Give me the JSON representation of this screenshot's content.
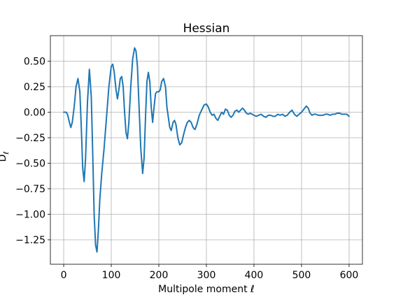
{
  "chart_data": {
    "type": "line",
    "title": "Hessian",
    "xlabel": "Multipole moment ℓ",
    "ylabel": "D_ℓ",
    "xlim": [
      -28,
      628
    ],
    "ylim": [
      -1.49,
      0.75
    ],
    "grid": true,
    "xticks": [
      0,
      100,
      200,
      300,
      400,
      500,
      600
    ],
    "yticks": [
      0.5,
      0.25,
      0.0,
      -0.25,
      -0.5,
      -0.75,
      -1.0,
      -1.25
    ],
    "ytick_labels": [
      "0.50",
      "0.25",
      "0.00",
      "−0.25",
      "−0.50",
      "−0.75",
      "−1.00",
      "−1.25"
    ],
    "line_color": "#1f77b4",
    "series": [
      {
        "points": [
          [
            0,
            0.0
          ],
          [
            5,
            0.0
          ],
          [
            8,
            -0.02
          ],
          [
            12,
            -0.1
          ],
          [
            15,
            -0.15
          ],
          [
            18,
            -0.1
          ],
          [
            22,
            0.05
          ],
          [
            26,
            0.25
          ],
          [
            30,
            0.33
          ],
          [
            34,
            0.2
          ],
          [
            37,
            -0.15
          ],
          [
            40,
            -0.55
          ],
          [
            43,
            -0.68
          ],
          [
            46,
            -0.45
          ],
          [
            50,
            0.1
          ],
          [
            54,
            0.42
          ],
          [
            58,
            0.15
          ],
          [
            61,
            -0.4
          ],
          [
            64,
            -1.0
          ],
          [
            67,
            -1.3
          ],
          [
            70,
            -1.37
          ],
          [
            73,
            -1.15
          ],
          [
            76,
            -0.85
          ],
          [
            80,
            -0.6
          ],
          [
            85,
            -0.35
          ],
          [
            90,
            -0.05
          ],
          [
            95,
            0.25
          ],
          [
            100,
            0.45
          ],
          [
            103,
            0.47
          ],
          [
            106,
            0.4
          ],
          [
            110,
            0.22
          ],
          [
            113,
            0.13
          ],
          [
            116,
            0.22
          ],
          [
            119,
            0.33
          ],
          [
            122,
            0.35
          ],
          [
            125,
            0.25
          ],
          [
            128,
            0.0
          ],
          [
            131,
            -0.2
          ],
          [
            134,
            -0.26
          ],
          [
            137,
            -0.1
          ],
          [
            141,
            0.25
          ],
          [
            145,
            0.52
          ],
          [
            149,
            0.63
          ],
          [
            152,
            0.6
          ],
          [
            155,
            0.45
          ],
          [
            158,
            0.1
          ],
          [
            162,
            -0.35
          ],
          [
            166,
            -0.6
          ],
          [
            169,
            -0.45
          ],
          [
            172,
            -0.05
          ],
          [
            175,
            0.3
          ],
          [
            178,
            0.39
          ],
          [
            181,
            0.3
          ],
          [
            184,
            0.05
          ],
          [
            187,
            -0.1
          ],
          [
            190,
            0.05
          ],
          [
            193,
            0.18
          ],
          [
            196,
            0.2
          ],
          [
            200,
            0.2
          ],
          [
            203,
            0.22
          ],
          [
            206,
            0.3
          ],
          [
            210,
            0.33
          ],
          [
            214,
            0.25
          ],
          [
            217,
            0.05
          ],
          [
            220,
            -0.05
          ],
          [
            223,
            -0.15
          ],
          [
            226,
            -0.18
          ],
          [
            230,
            -0.1
          ],
          [
            233,
            -0.08
          ],
          [
            236,
            -0.12
          ],
          [
            240,
            -0.25
          ],
          [
            244,
            -0.32
          ],
          [
            248,
            -0.3
          ],
          [
            252,
            -0.22
          ],
          [
            256,
            -0.15
          ],
          [
            260,
            -0.1
          ],
          [
            264,
            -0.08
          ],
          [
            268,
            -0.1
          ],
          [
            272,
            -0.15
          ],
          [
            276,
            -0.17
          ],
          [
            280,
            -0.12
          ],
          [
            285,
            -0.03
          ],
          [
            290,
            0.02
          ],
          [
            295,
            0.07
          ],
          [
            300,
            0.08
          ],
          [
            304,
            0.05
          ],
          [
            308,
            0.0
          ],
          [
            312,
            -0.03
          ],
          [
            316,
            -0.02
          ],
          [
            320,
            -0.06
          ],
          [
            324,
            -0.08
          ],
          [
            328,
            -0.04
          ],
          [
            332,
            0.0
          ],
          [
            336,
            -0.02
          ],
          [
            340,
            0.03
          ],
          [
            344,
            0.02
          ],
          [
            348,
            -0.03
          ],
          [
            352,
            -0.05
          ],
          [
            356,
            -0.03
          ],
          [
            360,
            0.01
          ],
          [
            364,
            0.02
          ],
          [
            368,
            0.0
          ],
          [
            372,
            0.02
          ],
          [
            376,
            0.04
          ],
          [
            380,
            0.02
          ],
          [
            384,
            -0.01
          ],
          [
            388,
            -0.02
          ],
          [
            392,
            -0.01
          ],
          [
            396,
            -0.02
          ],
          [
            400,
            -0.03
          ],
          [
            405,
            -0.04
          ],
          [
            410,
            -0.03
          ],
          [
            415,
            -0.02
          ],
          [
            420,
            -0.04
          ],
          [
            425,
            -0.05
          ],
          [
            430,
            -0.03
          ],
          [
            435,
            -0.03
          ],
          [
            440,
            -0.04
          ],
          [
            445,
            -0.04
          ],
          [
            450,
            -0.02
          ],
          [
            455,
            -0.03
          ],
          [
            460,
            -0.02
          ],
          [
            465,
            -0.04
          ],
          [
            470,
            -0.03
          ],
          [
            475,
            0.0
          ],
          [
            480,
            0.02
          ],
          [
            485,
            -0.02
          ],
          [
            490,
            -0.04
          ],
          [
            495,
            -0.02
          ],
          [
            500,
            0.0
          ],
          [
            505,
            0.03
          ],
          [
            510,
            0.06
          ],
          [
            514,
            0.04
          ],
          [
            518,
            -0.01
          ],
          [
            522,
            -0.03
          ],
          [
            526,
            -0.02
          ],
          [
            530,
            -0.02
          ],
          [
            535,
            -0.03
          ],
          [
            540,
            -0.03
          ],
          [
            545,
            -0.03
          ],
          [
            550,
            -0.02
          ],
          [
            555,
            -0.02
          ],
          [
            560,
            -0.03
          ],
          [
            565,
            -0.02
          ],
          [
            570,
            -0.02
          ],
          [
            575,
            -0.01
          ],
          [
            580,
            -0.01
          ],
          [
            585,
            -0.02
          ],
          [
            590,
            -0.02
          ],
          [
            595,
            -0.02
          ],
          [
            600,
            -0.04
          ]
        ]
      }
    ]
  }
}
